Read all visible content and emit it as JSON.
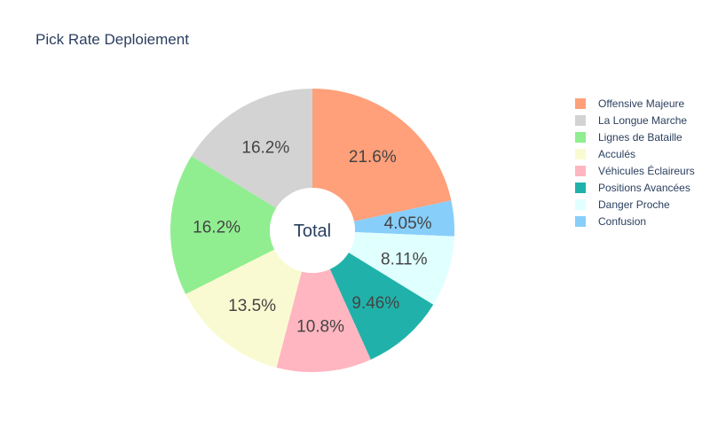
{
  "chart_data": {
    "type": "pie",
    "title": "Pick Rate Deploiement",
    "hole_label": "Total",
    "labels": [
      "Offensive Majeure",
      "Confusion",
      "Danger Proche",
      "Positions Avancées",
      "Véhicules Éclaireurs",
      "Acculés",
      "Lignes de Bataille",
      "La Longue Marche"
    ],
    "values": [
      21.6,
      4.05,
      8.11,
      9.46,
      10.8,
      13.5,
      16.2,
      16.2
    ],
    "value_labels": [
      "21.6%",
      "4.05%",
      "8.11%",
      "9.46%",
      "10.8%",
      "13.5%",
      "16.2%",
      "16.2%"
    ],
    "colors": [
      "#FFA07A",
      "#87CEFA",
      "#E0FFFF",
      "#20B2AA",
      "#FFB6C1",
      "#FAFAD2",
      "#90EE90",
      "#D3D3D3"
    ],
    "direction": "clockwise",
    "start": "top",
    "legend_position": "right",
    "legend": [
      {
        "label": "Offensive Majeure",
        "color": "#FFA07A"
      },
      {
        "label": "La Longue Marche",
        "color": "#D3D3D3"
      },
      {
        "label": "Lignes de Bataille",
        "color": "#90EE90"
      },
      {
        "label": "Acculés",
        "color": "#FAFAD2"
      },
      {
        "label": "Véhicules Éclaireurs",
        "color": "#FFB6C1"
      },
      {
        "label": "Positions Avancées",
        "color": "#20B2AA"
      },
      {
        "label": "Danger Proche",
        "color": "#E0FFFF"
      },
      {
        "label": "Confusion",
        "color": "#87CEFA"
      }
    ]
  }
}
